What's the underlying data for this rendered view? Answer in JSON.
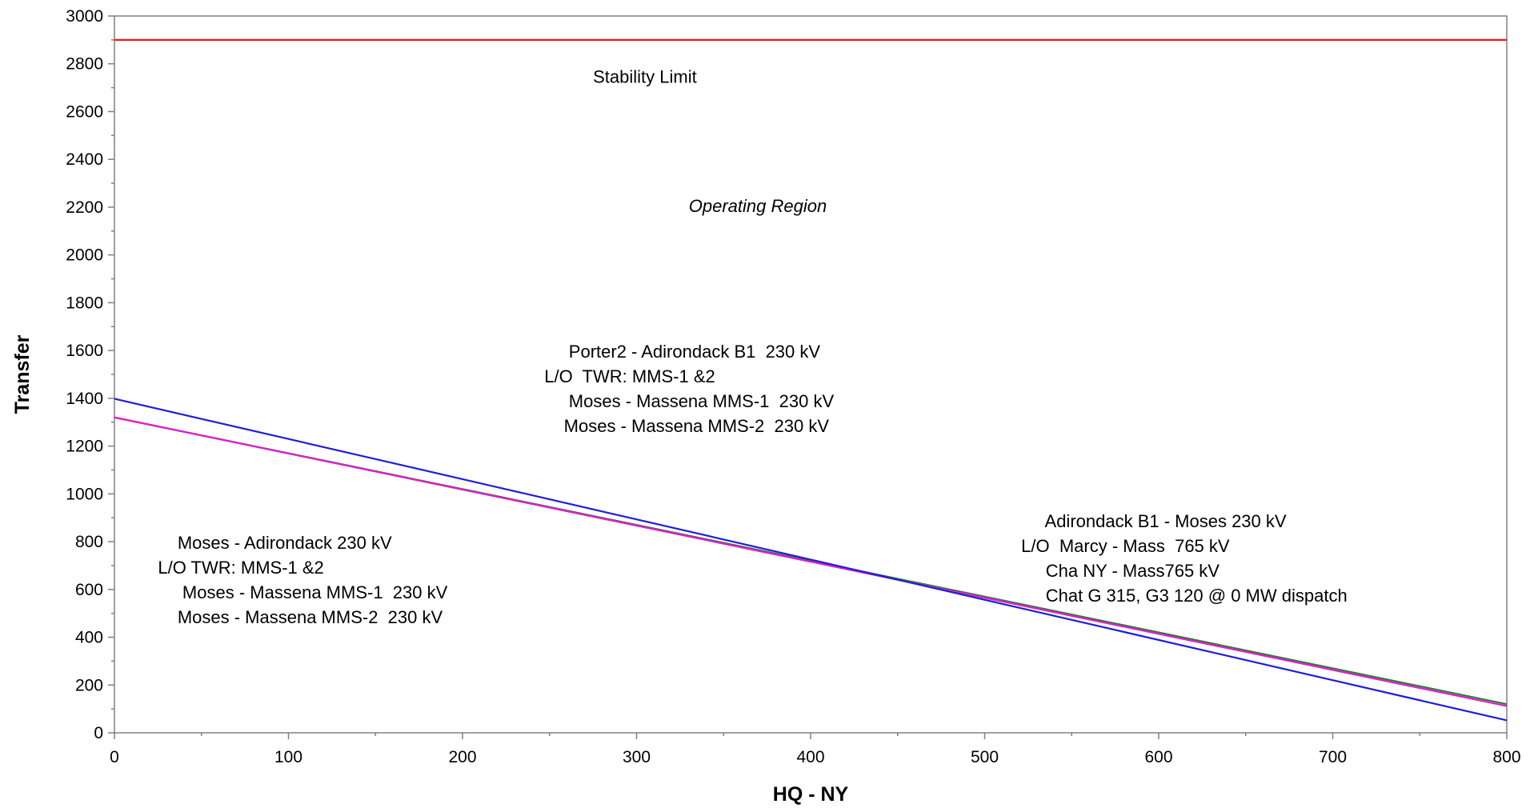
{
  "chart_data": {
    "type": "line",
    "title": "",
    "xlabel": "HQ - NY",
    "ylabel": "Transfer",
    "xlim": [
      0,
      800
    ],
    "ylim": [
      0,
      3000
    ],
    "x_ticks": [
      0,
      100,
      200,
      300,
      400,
      500,
      600,
      700,
      800
    ],
    "y_ticks": [
      0,
      200,
      400,
      600,
      800,
      1000,
      1200,
      1400,
      1600,
      1800,
      2000,
      2200,
      2400,
      2600,
      2800,
      3000
    ],
    "grid": false,
    "legend": "none",
    "series": [
      {
        "x": [
          0,
          800
        ],
        "y": [
          2900,
          2900
        ],
        "color": "#e31a1c"
      },
      {
        "x": [
          0,
          800
        ],
        "y": [
          1320,
          120
        ],
        "color": "#2e7d32"
      },
      {
        "x": [
          0,
          800
        ],
        "y": [
          1320,
          112
        ],
        "color": "#e31ad6"
      },
      {
        "x": [
          0,
          800
        ],
        "y": [
          1398,
          52
        ],
        "color": "#1f1fd6"
      }
    ],
    "annotations": [
      {
        "id": "stability",
        "lines": [
          "Stability Limit"
        ],
        "x": 275,
        "y": 2720,
        "italic": false
      },
      {
        "id": "operating",
        "lines": [
          "Operating Region"
        ],
        "x": 330,
        "y": 2180,
        "italic": true
      },
      {
        "id": "porter",
        "lines": [
          "     Porter2 - Adirondack B1  230 kV",
          "L/O  TWR: MMS-1 &2",
          "     Moses - Massena MMS-1  230 kV",
          "    Moses - Massena MMS-2  230 kV"
        ],
        "x": 247,
        "y": 1570,
        "italic": false
      },
      {
        "id": "moses",
        "lines": [
          "    Moses - Adirondack 230 kV",
          "L/O TWR: MMS-1 &2",
          "     Moses - Massena MMS-1  230 kV",
          "    Moses - Massena MMS-2  230 kV"
        ],
        "x": 25,
        "y": 770,
        "italic": false
      },
      {
        "id": "adirondack",
        "lines": [
          "     Adirondack B1 - Moses 230 kV",
          "L/O  Marcy - Mass  765 kV",
          "     Cha NY - Mass765 kV",
          "     Chat G 315, G3 120 @ 0 MW dispatch"
        ],
        "x": 521,
        "y": 860,
        "italic": false
      }
    ]
  }
}
